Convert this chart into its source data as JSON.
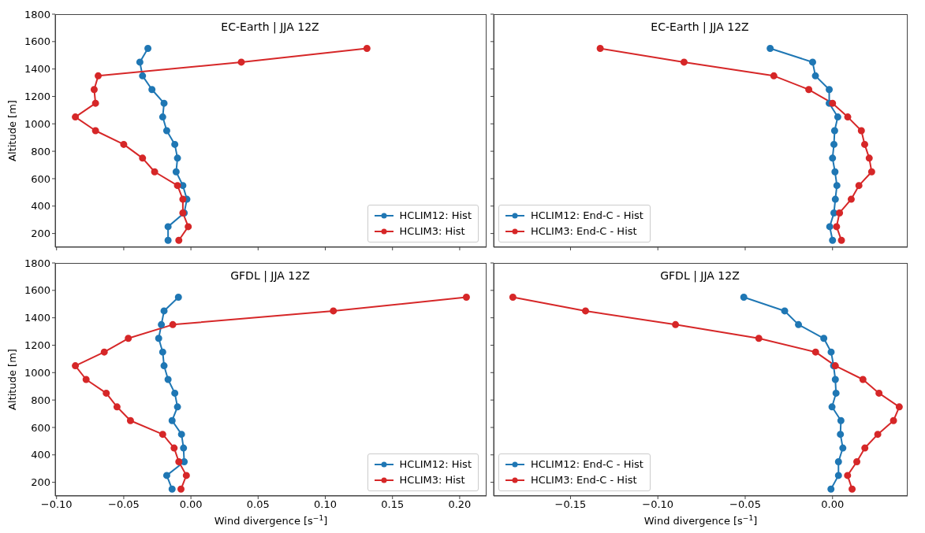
{
  "chart_data": [
    {
      "type": "line",
      "title": "EC-Earth | JJA 12Z",
      "ylabel": "Altitude [m]",
      "xlim": [
        -0.101,
        0.22
      ],
      "xticks": [
        -0.1,
        -0.05,
        0,
        0.05,
        0.1,
        0.15,
        0.2
      ],
      "ylim": [
        100,
        1800
      ],
      "yticks": [
        200,
        400,
        600,
        800,
        1000,
        1200,
        1400,
        1600,
        1800
      ],
      "tick_labels": "y",
      "legend": "bottom right",
      "marker": "circle",
      "series": [
        {
          "name": "HCLIM12: Hist",
          "color": "#1f77b4",
          "x": [
            -0.017,
            -0.017,
            -0.005,
            -0.003,
            -0.006,
            -0.011,
            -0.01,
            -0.012,
            -0.018,
            -0.021,
            -0.02,
            -0.029,
            -0.036,
            -0.038,
            -0.032
          ],
          "values": [
            150,
            250,
            350,
            450,
            550,
            650,
            750,
            850,
            950,
            1050,
            1150,
            1250,
            1350,
            1450,
            1550
          ]
        },
        {
          "name": "HCLIM3: Hist",
          "color": "#d62728",
          "x": [
            -0.009,
            -0.002,
            -0.006,
            -0.006,
            -0.01,
            -0.027,
            -0.036,
            -0.05,
            -0.071,
            -0.086,
            -0.071,
            -0.072,
            -0.069,
            0.0375,
            0.131
          ],
          "values": [
            150,
            250,
            350,
            450,
            550,
            650,
            750,
            850,
            950,
            1050,
            1150,
            1250,
            1350,
            1450,
            1550
          ]
        }
      ]
    },
    {
      "type": "line",
      "title": "EC-Earth | JJA 12Z",
      "xlim": [
        -0.194,
        0.043
      ],
      "xticks": [
        -0.15,
        -0.1,
        -0.05,
        0
      ],
      "ylim": [
        100,
        1800
      ],
      "yticks": [
        200,
        400,
        600,
        800,
        1000,
        1200,
        1400,
        1600,
        1800
      ],
      "tick_labels": false,
      "legend": "bottom left",
      "marker": "circle",
      "series": [
        {
          "name": "HCLIM12: End-C - Hist",
          "color": "#1f77b4",
          "x": [
            0,
            -0.0016,
            0.0008,
            0.0016,
            0.0025,
            0.0014,
            0,
            0.0008,
            0.0012,
            0.003,
            -0.0019,
            -0.0019,
            -0.0098,
            -0.0114,
            -0.0357
          ],
          "values": [
            150,
            250,
            350,
            450,
            550,
            650,
            750,
            850,
            950,
            1050,
            1150,
            1250,
            1350,
            1450,
            1550
          ]
        },
        {
          "name": "HCLIM3: End-C - Hist",
          "color": "#d62728",
          "x": [
            0.0051,
            0.0023,
            0.004,
            0.0107,
            0.0151,
            0.0224,
            0.021,
            0.0184,
            0.0165,
            0.0087,
            0,
            -0.0136,
            -0.0336,
            -0.085,
            -0.133
          ],
          "values": [
            150,
            250,
            350,
            450,
            550,
            650,
            750,
            850,
            950,
            1050,
            1150,
            1250,
            1350,
            1450,
            1550
          ]
        }
      ]
    },
    {
      "type": "line",
      "title": "GFDL | JJA 12Z",
      "xlabel": "Wind divergence [s$^{−1}$]",
      "ylabel": "Altitude [m]",
      "xlim": [
        -0.101,
        0.22
      ],
      "xticks": [
        {
          "value": -0.1,
          "label": "−0.10"
        },
        {
          "value": -0.05,
          "label": "−0.05"
        },
        {
          "value": 0,
          "label": "0.00"
        },
        {
          "value": 0.05,
          "label": "0.05"
        },
        {
          "value": 0.1,
          "label": "0.10"
        },
        {
          "value": 0.15,
          "label": "0.15"
        },
        {
          "value": 0.2,
          "label": "0.20"
        }
      ],
      "ylim": [
        100,
        1800
      ],
      "yticks": [
        200,
        400,
        600,
        800,
        1000,
        1200,
        1400,
        1600,
        1800
      ],
      "legend": "bottom right",
      "marker": "circle",
      "series": [
        {
          "name": "HCLIM12: Hist",
          "color": "#1f77b4",
          "x": [
            -0.014,
            -0.018,
            -0.005,
            -0.0055,
            -0.007,
            -0.014,
            -0.01,
            -0.012,
            -0.017,
            -0.02,
            -0.021,
            -0.024,
            -0.022,
            -0.02,
            -0.0093
          ],
          "values": [
            150,
            250,
            350,
            450,
            550,
            650,
            750,
            850,
            950,
            1050,
            1150,
            1250,
            1350,
            1450,
            1550
          ]
        },
        {
          "name": "HCLIM3: Hist",
          "color": "#d62728",
          "x": [
            -0.0074,
            -0.0034,
            -0.009,
            -0.0125,
            -0.021,
            -0.045,
            -0.055,
            -0.063,
            -0.078,
            -0.086,
            -0.0645,
            -0.0466,
            -0.0135,
            0.106,
            0.205
          ],
          "values": [
            150,
            250,
            350,
            450,
            550,
            650,
            750,
            850,
            950,
            1050,
            1150,
            1250,
            1350,
            1450,
            1550
          ]
        }
      ]
    },
    {
      "type": "line",
      "title": "GFDL | JJA 12Z",
      "xlabel": "Wind divergence [s$^{−1}$]",
      "xlim": [
        -0.194,
        0.043
      ],
      "xticks": [
        {
          "value": -0.15,
          "label": "−0.15"
        },
        {
          "value": -0.1,
          "label": "−0.10"
        },
        {
          "value": -0.05,
          "label": "−0.05"
        },
        {
          "value": 0,
          "label": "0.00"
        }
      ],
      "ylim": [
        100,
        1800
      ],
      "yticks": [
        200,
        400,
        600,
        800,
        1000,
        1200,
        1400,
        1600,
        1800
      ],
      "tick_labels": "x",
      "legend": "bottom left",
      "marker": "circle",
      "series": [
        {
          "name": "HCLIM12: End-C - Hist",
          "color": "#1f77b4",
          "x": [
            -0.0009,
            0.0034,
            0.0034,
            0.0059,
            0.0045,
            0.0048,
            -0.0003,
            0.002,
            0.0016,
            0.0006,
            -0.0008,
            -0.005,
            -0.0195,
            -0.0274,
            -0.0508
          ],
          "values": [
            150,
            250,
            350,
            450,
            550,
            650,
            750,
            850,
            950,
            1050,
            1150,
            1250,
            1350,
            1450,
            1550
          ]
        },
        {
          "name": "HCLIM3: End-C - Hist",
          "color": "#d62728",
          "x": [
            0.0112,
            0.0086,
            0.0139,
            0.0185,
            0.0259,
            0.0349,
            0.0382,
            0.0266,
            0.0174,
            0.0016,
            -0.0097,
            -0.0422,
            -0.0899,
            -0.1414,
            -0.183
          ],
          "values": [
            150,
            250,
            350,
            450,
            550,
            650,
            750,
            850,
            950,
            1050,
            1150,
            1250,
            1350,
            1450,
            1550
          ]
        }
      ]
    }
  ]
}
